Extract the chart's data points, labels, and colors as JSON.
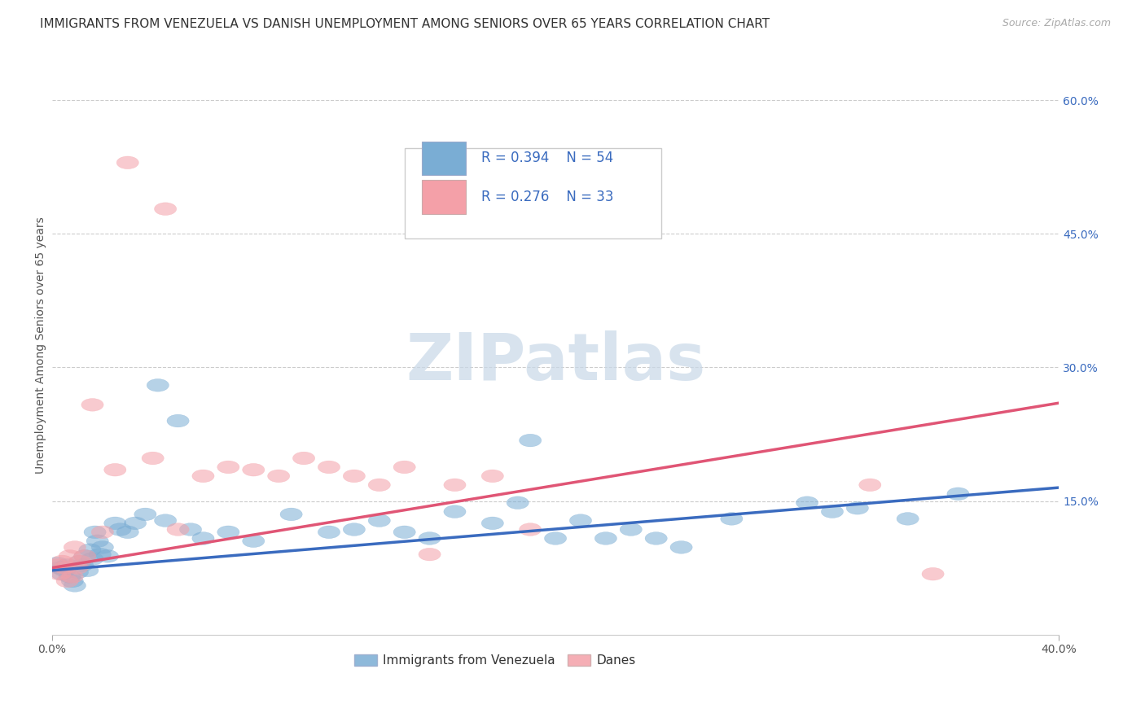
{
  "title": "IMMIGRANTS FROM VENEZUELA VS DANISH UNEMPLOYMENT AMONG SENIORS OVER 65 YEARS CORRELATION CHART",
  "source": "Source: ZipAtlas.com",
  "ylabel": "Unemployment Among Seniors over 65 years",
  "xlim": [
    0.0,
    0.4
  ],
  "ylim": [
    0.0,
    0.65
  ],
  "xtick_positions": [
    0.0,
    0.4
  ],
  "xtick_labels": [
    "0.0%",
    "40.0%"
  ],
  "yticks_right": [
    0.15,
    0.3,
    0.45,
    0.6
  ],
  "ytick_labels_right": [
    "15.0%",
    "30.0%",
    "45.0%",
    "60.0%"
  ],
  "grid_color": "#cccccc",
  "background_color": "#ffffff",
  "title_fontsize": 11,
  "source_fontsize": 9,
  "blue_color": "#7aadd4",
  "pink_color": "#f4a0a8",
  "blue_line_color": "#3a6bbf",
  "pink_line_color": "#e05575",
  "legend_R_blue": "0.394",
  "legend_N_blue": "54",
  "legend_R_pink": "0.276",
  "legend_N_pink": "33",
  "blue_trend_x": [
    0.0,
    0.4
  ],
  "blue_trend_y": [
    0.072,
    0.165
  ],
  "pink_trend_x": [
    0.0,
    0.4
  ],
  "pink_trend_y": [
    0.075,
    0.26
  ],
  "blue_x": [
    0.002,
    0.003,
    0.004,
    0.005,
    0.006,
    0.007,
    0.008,
    0.009,
    0.01,
    0.011,
    0.012,
    0.013,
    0.014,
    0.015,
    0.016,
    0.017,
    0.018,
    0.019,
    0.02,
    0.022,
    0.025,
    0.027,
    0.03,
    0.033,
    0.037,
    0.042,
    0.05,
    0.06,
    0.07,
    0.08,
    0.095,
    0.11,
    0.12,
    0.13,
    0.14,
    0.15,
    0.16,
    0.175,
    0.19,
    0.2,
    0.21,
    0.22,
    0.23,
    0.24,
    0.25,
    0.27,
    0.3,
    0.31,
    0.32,
    0.34,
    0.36,
    0.045,
    0.055,
    0.185
  ],
  "blue_y": [
    0.08,
    0.075,
    0.068,
    0.072,
    0.078,
    0.065,
    0.06,
    0.055,
    0.07,
    0.082,
    0.078,
    0.088,
    0.072,
    0.095,
    0.085,
    0.115,
    0.105,
    0.09,
    0.098,
    0.088,
    0.125,
    0.118,
    0.115,
    0.125,
    0.135,
    0.28,
    0.24,
    0.108,
    0.115,
    0.105,
    0.135,
    0.115,
    0.118,
    0.128,
    0.115,
    0.108,
    0.138,
    0.125,
    0.218,
    0.108,
    0.128,
    0.108,
    0.118,
    0.108,
    0.098,
    0.13,
    0.148,
    0.138,
    0.142,
    0.13,
    0.158,
    0.128,
    0.118,
    0.148
  ],
  "pink_x": [
    0.002,
    0.003,
    0.004,
    0.005,
    0.006,
    0.007,
    0.008,
    0.009,
    0.01,
    0.011,
    0.013,
    0.016,
    0.02,
    0.025,
    0.03,
    0.04,
    0.045,
    0.05,
    0.06,
    0.07,
    0.08,
    0.09,
    0.1,
    0.11,
    0.12,
    0.13,
    0.14,
    0.15,
    0.16,
    0.175,
    0.19,
    0.325,
    0.35
  ],
  "pink_y": [
    0.078,
    0.068,
    0.082,
    0.075,
    0.06,
    0.088,
    0.065,
    0.098,
    0.075,
    0.082,
    0.088,
    0.258,
    0.115,
    0.185,
    0.53,
    0.198,
    0.478,
    0.118,
    0.178,
    0.188,
    0.185,
    0.178,
    0.198,
    0.188,
    0.178,
    0.168,
    0.188,
    0.09,
    0.168,
    0.178,
    0.118,
    0.168,
    0.068
  ]
}
